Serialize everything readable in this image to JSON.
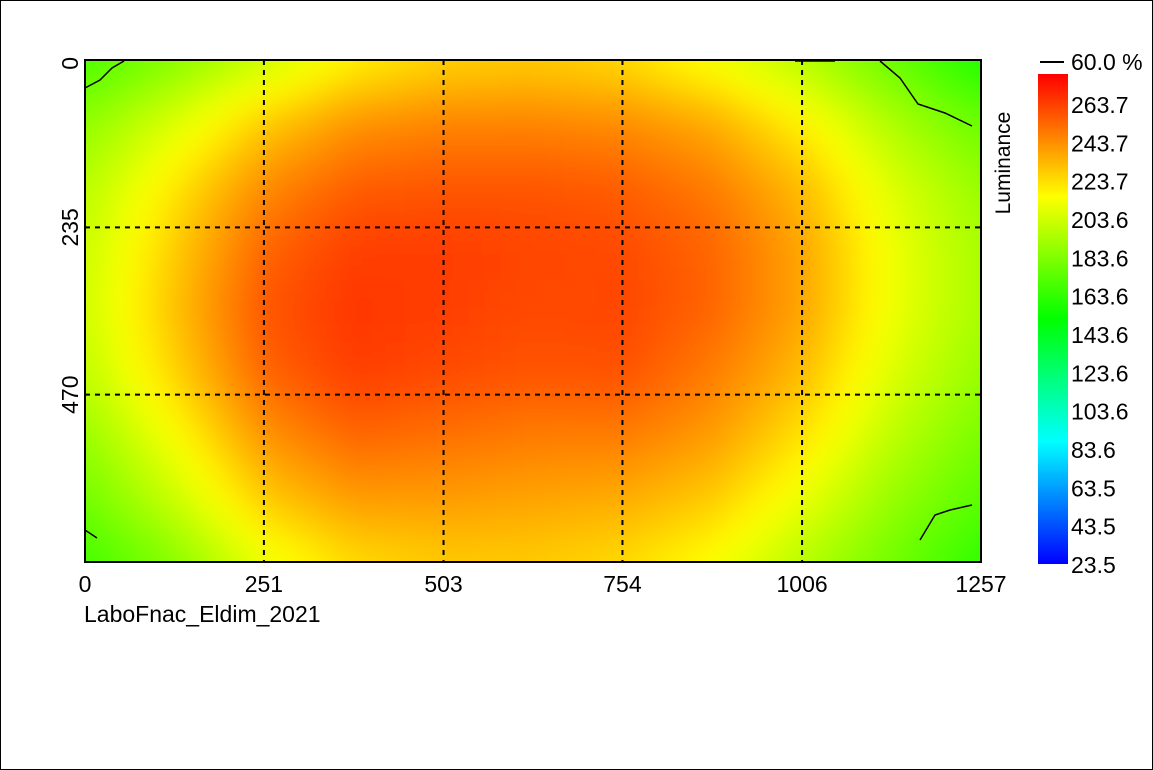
{
  "chart_data": {
    "type": "heatmap",
    "title": "",
    "xlabel": "",
    "ylabel": "",
    "caption": "LaboFnac_Eldim_2021",
    "x_ticks": [
      0,
      251,
      503,
      754,
      1006,
      1257
    ],
    "x_tick_labels": [
      "0",
      "251",
      "503",
      "754",
      "1006",
      "1257"
    ],
    "y_ticks": [
      0,
      235,
      470
    ],
    "y_tick_labels": [
      "0",
      "235",
      "470"
    ],
    "xlim": [
      0,
      1257
    ],
    "ylim": [
      0,
      705
    ],
    "grid": true,
    "colorbar": {
      "title": "Luminance",
      "contour_label": "60.0 %",
      "min": 23.5,
      "max": 283.8,
      "tick_values": [
        263.7,
        243.7,
        223.7,
        203.6,
        183.6,
        163.6,
        143.6,
        123.6,
        103.6,
        83.6,
        63.5,
        43.5,
        23.5
      ],
      "tick_labels": [
        "263.7",
        "243.7",
        "223.7",
        "203.6",
        "183.6",
        "163.6",
        "143.6",
        "123.6",
        "103.6",
        "83.6",
        "63.5",
        "43.5",
        "23.5"
      ]
    },
    "colormap": [
      "#0000ff",
      "#00ffff",
      "#00ff00",
      "#ffff00",
      "#ff0000"
    ],
    "grid_x": [
      0,
      126,
      251,
      377,
      503,
      628,
      754,
      880,
      1006,
      1131,
      1257
    ],
    "grid_y": [
      0,
      88,
      176,
      264,
      352,
      441,
      529,
      617,
      705
    ],
    "values": [
      [
        172,
        188,
        205,
        222,
        230,
        232,
        228,
        216,
        200,
        180,
        160
      ],
      [
        190,
        210,
        232,
        246,
        250,
        250,
        248,
        240,
        222,
        198,
        180
      ],
      [
        200,
        225,
        248,
        260,
        262,
        262,
        260,
        252,
        236,
        210,
        192
      ],
      [
        205,
        232,
        258,
        268,
        268,
        266,
        265,
        258,
        242,
        215,
        196
      ],
      [
        206,
        235,
        262,
        270,
        268,
        265,
        266,
        258,
        242,
        215,
        196
      ],
      [
        202,
        230,
        258,
        268,
        265,
        262,
        263,
        252,
        236,
        210,
        192
      ],
      [
        192,
        218,
        246,
        258,
        255,
        252,
        252,
        244,
        226,
        202,
        184
      ],
      [
        182,
        205,
        232,
        244,
        244,
        242,
        240,
        232,
        214,
        192,
        176
      ],
      [
        170,
        188,
        214,
        228,
        232,
        232,
        228,
        218,
        200,
        182,
        165
      ]
    ]
  }
}
